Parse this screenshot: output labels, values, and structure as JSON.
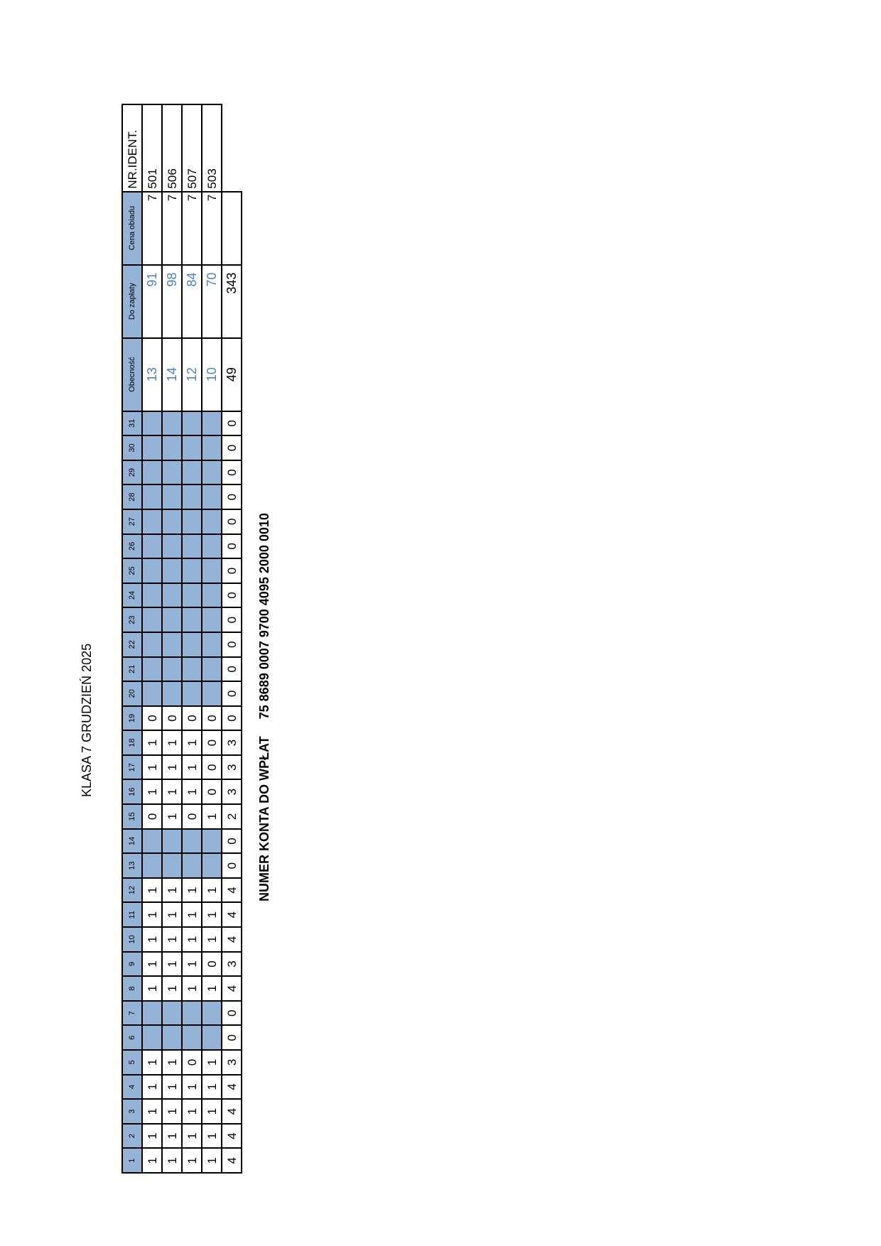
{
  "title": "KLASA 7 GRUDZIEŃ 2025",
  "days": [
    "1",
    "2",
    "3",
    "4",
    "5",
    "6",
    "7",
    "8",
    "9",
    "10",
    "11",
    "12",
    "13",
    "14",
    "15",
    "16",
    "17",
    "18",
    "19",
    "20",
    "21",
    "22",
    "23",
    "24",
    "25",
    "26",
    "27",
    "28",
    "29",
    "30",
    "31"
  ],
  "shaded_days": [
    6,
    7,
    13,
    14,
    20,
    21,
    22,
    23,
    24,
    25,
    26,
    27,
    28,
    29,
    30,
    31
  ],
  "headers": {
    "attendance": "Obecność",
    "to_pay": "Do zapłaty",
    "meal_price": "Cena obiadu",
    "ident": "NR.IDENT."
  },
  "rows": [
    {
      "days": [
        "1",
        "1",
        "1",
        "1",
        "1",
        "",
        "",
        "1",
        "1",
        "1",
        "1",
        "1",
        "",
        "",
        "0",
        "1",
        "1",
        "1",
        "0",
        "",
        "",
        "",
        "",
        "",
        "",
        "",
        "",
        "",
        "",
        "",
        ""
      ],
      "attendance": "13",
      "to_pay": "91",
      "meal_price": "7",
      "ident": "501"
    },
    {
      "days": [
        "1",
        "1",
        "1",
        "1",
        "1",
        "",
        "",
        "1",
        "1",
        "1",
        "1",
        "1",
        "",
        "",
        "1",
        "1",
        "1",
        "1",
        "0",
        "",
        "",
        "",
        "",
        "",
        "",
        "",
        "",
        "",
        "",
        "",
        ""
      ],
      "attendance": "14",
      "to_pay": "98",
      "meal_price": "7",
      "ident": "506"
    },
    {
      "days": [
        "1",
        "1",
        "1",
        "1",
        "0",
        "",
        "",
        "1",
        "1",
        "1",
        "1",
        "1",
        "",
        "",
        "0",
        "1",
        "1",
        "1",
        "0",
        "",
        "",
        "",
        "",
        "",
        "",
        "",
        "",
        "",
        "",
        "",
        ""
      ],
      "attendance": "12",
      "to_pay": "84",
      "meal_price": "7",
      "ident": "507"
    },
    {
      "days": [
        "1",
        "1",
        "1",
        "1",
        "1",
        "",
        "",
        "1",
        "0",
        "1",
        "1",
        "1",
        "",
        "",
        "1",
        "0",
        "0",
        "0",
        "0",
        "",
        "",
        "",
        "",
        "",
        "",
        "",
        "",
        "",
        "",
        "",
        ""
      ],
      "attendance": "10",
      "to_pay": "70",
      "meal_price": "7",
      "ident": "503"
    }
  ],
  "totals": {
    "days": [
      "4",
      "4",
      "4",
      "4",
      "3",
      "0",
      "0",
      "4",
      "3",
      "4",
      "4",
      "4",
      "0",
      "0",
      "2",
      "3",
      "3",
      "3",
      "0",
      "0",
      "0",
      "0",
      "0",
      "0",
      "0",
      "0",
      "0",
      "0",
      "0",
      "0",
      "0"
    ],
    "attendance": "49",
    "to_pay": "343"
  },
  "account": {
    "label": "NUMER KONTA  DO WPŁAT",
    "number": "75 8689 0007 9700 4095 2000 0010"
  },
  "colors": {
    "header_fill": "#95b3d7",
    "value_text": "#4f81bd"
  }
}
